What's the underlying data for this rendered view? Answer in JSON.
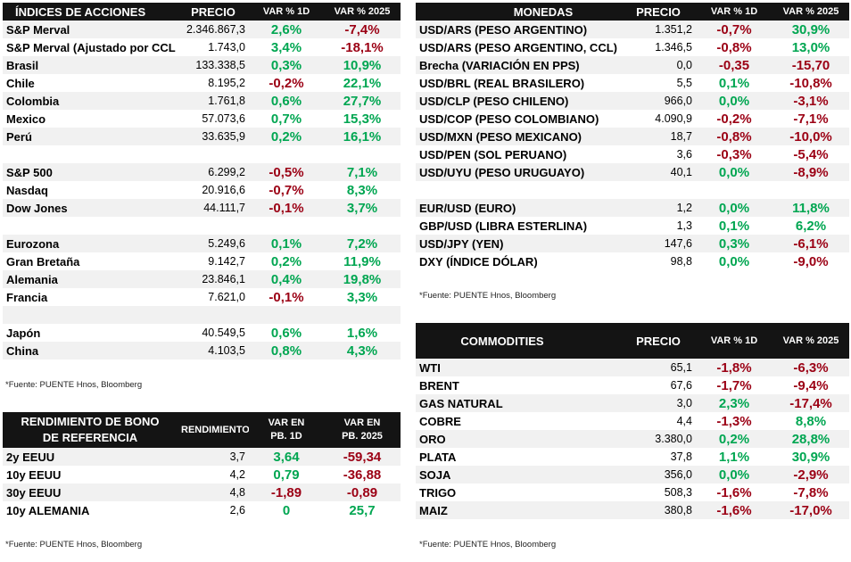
{
  "acciones": {
    "headers": [
      "ÍNDICES DE ACCIONES",
      "PRECIO",
      "VAR % 1D",
      "VAR % 2025"
    ],
    "groups": [
      [
        {
          "name": "S&P Merval",
          "price": "2.346.867,3",
          "d1": "2,6%",
          "d1s": "pos",
          "ytd": "-7,4%",
          "ytds": "neg"
        },
        {
          "name": "S&P Merval (Ajustado por CCL",
          "price": "1.743,0",
          "d1": "3,4%",
          "d1s": "pos",
          "ytd": "-18,1%",
          "ytds": "neg"
        },
        {
          "name": "Brasil",
          "price": "133.338,5",
          "d1": "0,3%",
          "d1s": "pos",
          "ytd": "10,9%",
          "ytds": "pos"
        },
        {
          "name": "Chile",
          "price": "8.195,2",
          "d1": "-0,2%",
          "d1s": "neg",
          "ytd": "22,1%",
          "ytds": "pos"
        },
        {
          "name": "Colombia",
          "price": "1.761,8",
          "d1": "0,6%",
          "d1s": "pos",
          "ytd": "27,7%",
          "ytds": "pos"
        },
        {
          "name": "Mexico",
          "price": "57.073,6",
          "d1": "0,7%",
          "d1s": "pos",
          "ytd": "15,3%",
          "ytds": "pos"
        },
        {
          "name": "Perú",
          "price": "33.635,9",
          "d1": "0,2%",
          "d1s": "pos",
          "ytd": "16,1%",
          "ytds": "pos"
        }
      ],
      [
        {
          "name": "S&P 500",
          "price": "6.299,2",
          "d1": "-0,5%",
          "d1s": "neg",
          "ytd": "7,1%",
          "ytds": "pos"
        },
        {
          "name": "Nasdaq",
          "price": "20.916,6",
          "d1": "-0,7%",
          "d1s": "neg",
          "ytd": "8,3%",
          "ytds": "pos"
        },
        {
          "name": "Dow Jones",
          "price": "44.111,7",
          "d1": "-0,1%",
          "d1s": "neg",
          "ytd": "3,7%",
          "ytds": "pos"
        }
      ],
      [
        {
          "name": "Eurozona",
          "price": "5.249,6",
          "d1": "0,1%",
          "d1s": "pos",
          "ytd": "7,2%",
          "ytds": "pos"
        },
        {
          "name": "Gran Bretaña",
          "price": "9.142,7",
          "d1": "0,2%",
          "d1s": "pos",
          "ytd": "11,9%",
          "ytds": "pos"
        },
        {
          "name": "Alemania",
          "price": "23.846,1",
          "d1": "0,4%",
          "d1s": "pos",
          "ytd": "19,8%",
          "ytds": "pos"
        },
        {
          "name": "Francia",
          "price": "7.621,0",
          "d1": "-0,1%",
          "d1s": "neg",
          "ytd": "3,3%",
          "ytds": "pos"
        }
      ],
      [
        {
          "name": "Japón",
          "price": "40.549,5",
          "d1": "0,6%",
          "d1s": "pos",
          "ytd": "1,6%",
          "ytds": "pos"
        },
        {
          "name": "China",
          "price": "4.103,5",
          "d1": "0,8%",
          "d1s": "pos",
          "ytd": "4,3%",
          "ytds": "pos"
        }
      ]
    ],
    "source": "*Fuente: PUENTE Hnos, Bloomberg"
  },
  "bonos": {
    "headers": [
      "RENDIMIENTO DE BONO DE REFERENCIA",
      "RENDIMIENTO",
      "VAR EN PB. 1D",
      "VAR EN PB. 2025"
    ],
    "rows": [
      {
        "name": "2y EEUU",
        "price": "3,7",
        "d1": "3,64",
        "d1s": "pos",
        "ytd": "-59,34",
        "ytds": "neg"
      },
      {
        "name": "10y EEUU",
        "price": "4,2",
        "d1": "0,79",
        "d1s": "pos",
        "ytd": "-36,88",
        "ytds": "neg"
      },
      {
        "name": "30y EEUU",
        "price": "4,8",
        "d1": "-1,89",
        "d1s": "neg",
        "ytd": "-0,89",
        "ytds": "neg"
      },
      {
        "name": "10y ALEMANIA",
        "price": "2,6",
        "d1": "0",
        "d1s": "pos",
        "ytd": "25,7",
        "ytds": "pos"
      }
    ],
    "source": "*Fuente: PUENTE Hnos, Bloomberg"
  },
  "monedas": {
    "headers": [
      "MONEDAS",
      "PRECIO",
      "VAR % 1D",
      "VAR % 2025"
    ],
    "groups": [
      [
        {
          "name": "USD/ARS (PESO ARGENTINO)",
          "price": "1.351,2",
          "d1": "-0,7%",
          "d1s": "neg",
          "ytd": "30,9%",
          "ytds": "pos"
        },
        {
          "name": "USD/ARS (PESO ARGENTINO, CCL)",
          "price": "1.346,5",
          "d1": "-0,8%",
          "d1s": "neg",
          "ytd": "13,0%",
          "ytds": "pos"
        },
        {
          "name": "Brecha (VARIACIÓN EN PPS)",
          "price": "0,0",
          "d1": "-0,35",
          "d1s": "neg",
          "ytd": "-15,70",
          "ytds": "neg"
        },
        {
          "name": "USD/BRL (REAL BRASILERO)",
          "price": "5,5",
          "d1": "0,1%",
          "d1s": "pos",
          "ytd": "-10,8%",
          "ytds": "neg"
        },
        {
          "name": "USD/CLP (PESO CHILENO)",
          "price": "966,0",
          "d1": "0,0%",
          "d1s": "pos",
          "ytd": "-3,1%",
          "ytds": "neg"
        },
        {
          "name": "USD/COP (PESO COLOMBIANO)",
          "price": "4.090,9",
          "d1": "-0,2%",
          "d1s": "neg",
          "ytd": "-7,1%",
          "ytds": "neg"
        },
        {
          "name": "USD/MXN (PESO MEXICANO)",
          "price": "18,7",
          "d1": "-0,8%",
          "d1s": "neg",
          "ytd": "-10,0%",
          "ytds": "neg"
        },
        {
          "name": "USD/PEN (SOL PERUANO)",
          "price": "3,6",
          "d1": "-0,3%",
          "d1s": "neg",
          "ytd": "-5,4%",
          "ytds": "neg"
        },
        {
          "name": "USD/UYU (PESO URUGUAYO)",
          "price": "40,1",
          "d1": "0,0%",
          "d1s": "pos",
          "ytd": "-8,9%",
          "ytds": "neg"
        }
      ],
      [
        {
          "name": "EUR/USD (EURO)",
          "price": "1,2",
          "d1": "0,0%",
          "d1s": "pos",
          "ytd": "11,8%",
          "ytds": "pos"
        },
        {
          "name": "GBP/USD (LIBRA ESTERLINA)",
          "price": "1,3",
          "d1": "0,1%",
          "d1s": "pos",
          "ytd": "6,2%",
          "ytds": "pos"
        },
        {
          "name": "USD/JPY (YEN)",
          "price": "147,6",
          "d1": "0,3%",
          "d1s": "pos",
          "ytd": "-6,1%",
          "ytds": "neg"
        },
        {
          "name": "DXY (ÍNDICE DÓLAR)",
          "price": "98,8",
          "d1": "0,0%",
          "d1s": "pos",
          "ytd": "-9,0%",
          "ytds": "neg"
        }
      ]
    ],
    "source": "*Fuente: PUENTE Hnos, Bloomberg"
  },
  "commodities": {
    "headers": [
      "COMMODITIES",
      "PRECIO",
      "VAR % 1D",
      "VAR % 2025"
    ],
    "rows": [
      {
        "name": "WTI",
        "price": "65,1",
        "d1": "-1,8%",
        "d1s": "neg",
        "ytd": "-6,3%",
        "ytds": "neg"
      },
      {
        "name": "BRENT",
        "price": "67,6",
        "d1": "-1,7%",
        "d1s": "neg",
        "ytd": "-9,4%",
        "ytds": "neg"
      },
      {
        "name": "GAS NATURAL",
        "price": "3,0",
        "d1": "2,3%",
        "d1s": "pos",
        "ytd": "-17,4%",
        "ytds": "neg"
      },
      {
        "name": "COBRE",
        "price": "4,4",
        "d1": "-1,3%",
        "d1s": "neg",
        "ytd": "8,8%",
        "ytds": "pos"
      },
      {
        "name": "ORO",
        "price": "3.380,0",
        "d1": "0,2%",
        "d1s": "pos",
        "ytd": "28,8%",
        "ytds": "pos"
      },
      {
        "name": "PLATA",
        "price": "37,8",
        "d1": "1,1%",
        "d1s": "pos",
        "ytd": "30,9%",
        "ytds": "pos"
      },
      {
        "name": "SOJA",
        "price": "356,0",
        "d1": "0,0%",
        "d1s": "pos",
        "ytd": "-2,9%",
        "ytds": "neg"
      },
      {
        "name": "TRIGO",
        "price": "508,3",
        "d1": "-1,6%",
        "d1s": "neg",
        "ytd": "-7,8%",
        "ytds": "neg"
      },
      {
        "name": "MAIZ",
        "price": "380,8",
        "d1": "-1,6%",
        "d1s": "neg",
        "ytd": "-17,0%",
        "ytds": "neg"
      }
    ],
    "source": "*Fuente: PUENTE Hnos, Bloomberg"
  },
  "colors": {
    "positive": "#00a651",
    "negative": "#9b0014",
    "header_bg": "#141414",
    "stripe": "#f1f1f1"
  }
}
